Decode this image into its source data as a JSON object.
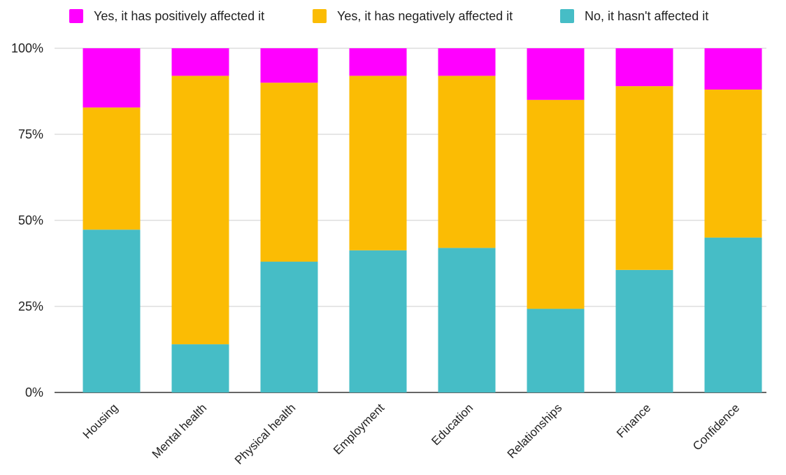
{
  "chart_data": {
    "type": "bar",
    "stacked": true,
    "categories": [
      "Housing",
      "Mental health",
      "Physical health",
      "Employment",
      "Education",
      "Relationships",
      "Finance",
      "Confidence"
    ],
    "series": [
      {
        "name": "No, it hasn't affected it",
        "color": "#46bdc6",
        "values": [
          47.3,
          14,
          38,
          41.3,
          42,
          24.3,
          35.6,
          45
        ]
      },
      {
        "name": "Yes, it has negatively affected it",
        "color": "#fbbc04",
        "values": [
          35.5,
          78,
          52,
          50.7,
          50,
          60.7,
          53.4,
          43
        ]
      },
      {
        "name": "Yes, it has positively affected it",
        "color": "#ff00ff",
        "values": [
          17.2,
          8,
          10,
          8,
          8,
          15,
          11,
          12
        ]
      }
    ],
    "legend_order": [
      2,
      1,
      0
    ],
    "legend_position": "top",
    "ylim": [
      0,
      100
    ],
    "yticks": [
      {
        "value": 0,
        "label": "0%"
      },
      {
        "value": 25,
        "label": "25%"
      },
      {
        "value": 50,
        "label": "50%"
      },
      {
        "value": 75,
        "label": "75%"
      },
      {
        "value": 100,
        "label": "100%"
      }
    ],
    "grid": true,
    "title": "",
    "xlabel": "",
    "ylabel": ""
  }
}
